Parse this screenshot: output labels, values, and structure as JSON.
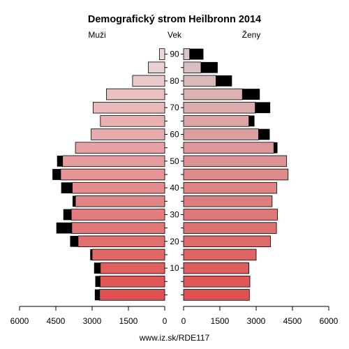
{
  "chart_data": {
    "type": "bar",
    "orientation": "horizontal-population-pyramid",
    "title": "Demografický strom Heilbronn 2014",
    "left_label": "Muži",
    "center_label": "Vek",
    "right_label": "Ženy",
    "source": "www.iz.sk/RDE117",
    "xlim": [
      0,
      6000
    ],
    "x_ticks": [
      0,
      1500,
      3000,
      4500,
      6000
    ],
    "x_tick_labels_left": [
      "0",
      "1500",
      "3000",
      "4500",
      "6000"
    ],
    "x_tick_labels_right": [
      "0",
      "1500",
      "3000",
      "4500",
      "6000"
    ],
    "age_tick_labels": [
      "10",
      "20",
      "30",
      "40",
      "50",
      "60",
      "70",
      "80",
      "90"
    ],
    "age_groups": [
      "0-4",
      "5-9",
      "10-14",
      "15-19",
      "20-24",
      "25-29",
      "30-34",
      "35-39",
      "40-44",
      "45-49",
      "50-54",
      "55-59",
      "60-64",
      "65-69",
      "70-74",
      "75-79",
      "80-84",
      "85-89",
      "90+"
    ],
    "male_base": [
      2690,
      2670,
      2660,
      3000,
      3580,
      3840,
      3860,
      3690,
      3820,
      4300,
      4220,
      3690,
      3040,
      2660,
      2960,
      2410,
      1330,
      680,
      220
    ],
    "male_excess": [
      200,
      200,
      260,
      80,
      330,
      640,
      330,
      120,
      460,
      340,
      230,
      0,
      0,
      0,
      0,
      0,
      0,
      0,
      0
    ],
    "female_base": [
      2720,
      2740,
      2700,
      3000,
      3590,
      3840,
      3880,
      3660,
      3850,
      4320,
      4260,
      3730,
      3100,
      2700,
      2960,
      2430,
      1340,
      720,
      250
    ],
    "female_excess": [
      0,
      0,
      0,
      0,
      0,
      0,
      0,
      0,
      0,
      0,
      0,
      150,
      460,
      230,
      620,
      720,
      660,
      690,
      570
    ],
    "colors": {
      "excess": "#000000",
      "male_fill_young": "#e05050",
      "male_fill_old": "#ebd8d8",
      "female_fill_young": "#e05050",
      "female_fill_old": "#d9c6c6",
      "bar_border": "#000000"
    }
  }
}
